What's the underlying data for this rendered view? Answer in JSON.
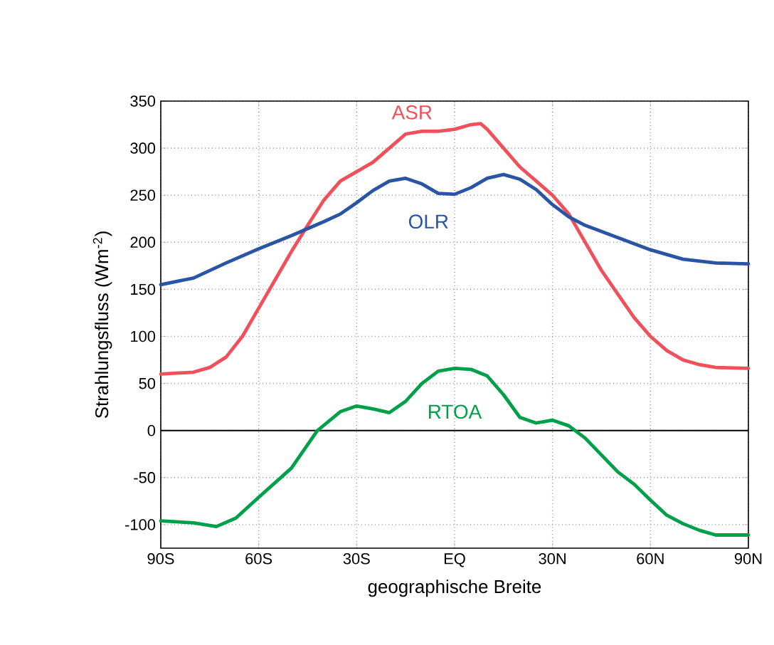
{
  "chart_data": {
    "type": "line",
    "xlabel": "geographische Breite",
    "ylabel": "Strahlungsfluss (Wm$^{-2}$)",
    "xlim": [
      -90,
      90
    ],
    "ylim": [
      -125,
      350
    ],
    "xticks": [
      {
        "value": -90,
        "label": "90S"
      },
      {
        "value": -60,
        "label": "60S"
      },
      {
        "value": -30,
        "label": "30S"
      },
      {
        "value": 0,
        "label": "EQ"
      },
      {
        "value": 30,
        "label": "30N"
      },
      {
        "value": 60,
        "label": "60N"
      },
      {
        "value": 90,
        "label": "90N"
      }
    ],
    "yticks": [
      -100,
      -50,
      0,
      50,
      100,
      150,
      200,
      250,
      300,
      350
    ],
    "grid": true,
    "marker": "none",
    "line_style": "solid",
    "ref_lines": [
      {
        "axis": "y",
        "value": 0,
        "color": "#000000"
      }
    ],
    "series": [
      {
        "name": "ASR",
        "color": "#f0505a",
        "x": [
          -90,
          -80,
          -75,
          -70,
          -65,
          -60,
          -55,
          -50,
          -45,
          -40,
          -35,
          -30,
          -25,
          -20,
          -15,
          -10,
          -5,
          0,
          5,
          8,
          10,
          15,
          20,
          25,
          30,
          35,
          40,
          45,
          50,
          55,
          60,
          65,
          70,
          75,
          80,
          90
        ],
        "values": [
          60,
          62,
          67,
          78,
          100,
          130,
          160,
          190,
          218,
          245,
          265,
          275,
          285,
          300,
          315,
          318,
          318,
          320,
          325,
          326,
          320,
          300,
          280,
          265,
          250,
          230,
          200,
          170,
          145,
          120,
          100,
          85,
          75,
          70,
          67,
          66
        ]
      },
      {
        "name": "OLR",
        "color": "#2a55a5",
        "x": [
          -90,
          -80,
          -70,
          -60,
          -50,
          -40,
          -35,
          -30,
          -25,
          -20,
          -15,
          -10,
          -5,
          0,
          5,
          10,
          15,
          20,
          25,
          30,
          35,
          40,
          50,
          60,
          70,
          80,
          90
        ],
        "values": [
          155,
          162,
          178,
          193,
          207,
          222,
          230,
          242,
          255,
          265,
          268,
          262,
          252,
          251,
          258,
          268,
          272,
          267,
          256,
          240,
          227,
          218,
          205,
          192,
          182,
          178,
          177
        ]
      },
      {
        "name": "RTOA",
        "color": "#00a04a",
        "x": [
          -90,
          -80,
          -73,
          -67,
          -60,
          -50,
          -42,
          -35,
          -30,
          -25,
          -20,
          -15,
          -10,
          -5,
          0,
          5,
          10,
          15,
          20,
          25,
          30,
          35,
          40,
          45,
          50,
          55,
          60,
          65,
          70,
          75,
          80,
          90
        ],
        "values": [
          -96,
          -98,
          -102,
          -93,
          -71,
          -40,
          0,
          20,
          26,
          23,
          19,
          31,
          50,
          63,
          66,
          65,
          58,
          38,
          14,
          8,
          11,
          5,
          -8,
          -26,
          -44,
          -57,
          -74,
          -90,
          -99,
          -106,
          -111,
          -111
        ]
      }
    ]
  }
}
